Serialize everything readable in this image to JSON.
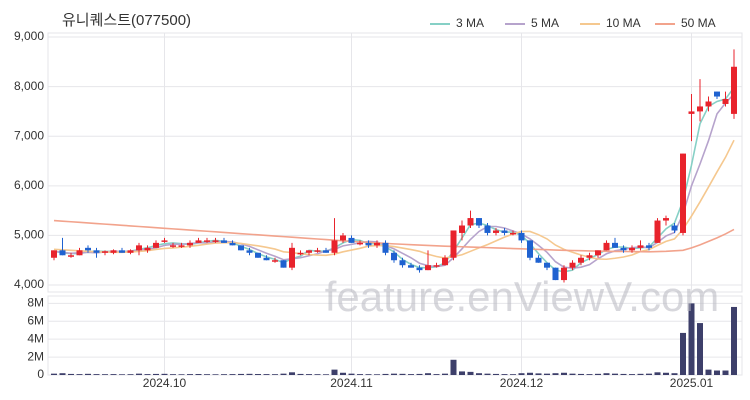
{
  "chart_data": [
    {
      "type": "candlestick",
      "title": "유니퀘스트(077500)",
      "watermark": "feature.enViewV.com",
      "ylim": [
        3900,
        9000
      ],
      "yticks": [
        {
          "value": 4000,
          "label": "4,000"
        },
        {
          "value": 5000,
          "label": "5,000"
        },
        {
          "value": 6000,
          "label": "6,000"
        },
        {
          "value": 7000,
          "label": "7,000"
        },
        {
          "value": 8000,
          "label": "8,000"
        },
        {
          "value": 9000,
          "label": "9,000"
        }
      ],
      "grid": true,
      "up_color": "#e8232c",
      "down_color": "#1f62d0",
      "legend": "top-right",
      "open": [
        4550,
        4700,
        4600,
        4600,
        4750,
        4700,
        4650,
        4650,
        4700,
        4650,
        4700,
        4700,
        4750,
        4900,
        4800,
        4800,
        4800,
        4850,
        4900,
        4900,
        4900,
        4850,
        4800,
        4700,
        4650,
        4550,
        4500,
        4500,
        4350,
        4650,
        4650,
        4700,
        4700,
        4650,
        4900,
        4950,
        4850,
        4850,
        4800,
        4850,
        4650,
        4500,
        4400,
        4350,
        4300,
        4400,
        4400,
        4550,
        5050,
        5200,
        5350,
        5200,
        5050,
        5100,
        5050,
        5050,
        4900,
        4550,
        4450,
        4350,
        4100,
        4350,
        4450,
        4550,
        4600,
        4700,
        4850,
        4750,
        4700,
        4750,
        4800,
        4850,
        5300,
        5200,
        5050,
        7450,
        7500,
        7600,
        7900,
        7650,
        7450
      ],
      "high": [
        4700,
        4950,
        4650,
        4750,
        4800,
        4750,
        4700,
        4720,
        4750,
        4720,
        4850,
        4800,
        4900,
        4950,
        4850,
        4850,
        4900,
        4950,
        4950,
        4950,
        4950,
        4900,
        4800,
        4750,
        4650,
        4600,
        4550,
        4500,
        4850,
        4700,
        4700,
        4750,
        4750,
        5350,
        5050,
        5000,
        4900,
        4900,
        4900,
        4900,
        4700,
        4550,
        4450,
        4400,
        4700,
        4450,
        4600,
        5100,
        5300,
        5500,
        5350,
        5250,
        5150,
        5150,
        5100,
        5100,
        4900,
        4600,
        4450,
        4350,
        4400,
        4500,
        4600,
        4650,
        4700,
        4900,
        4950,
        4800,
        4800,
        4900,
        4850,
        5350,
        5400,
        5250,
        6650,
        7850,
        8150,
        7800,
        7900,
        7900,
        8750
      ],
      "low": [
        4500,
        4600,
        4550,
        4600,
        4650,
        4550,
        4600,
        4620,
        4650,
        4620,
        4600,
        4650,
        4750,
        4850,
        4750,
        4750,
        4750,
        4850,
        4850,
        4850,
        4850,
        4800,
        4700,
        4600,
        4550,
        4500,
        4450,
        4350,
        4300,
        4600,
        4600,
        4650,
        4650,
        4600,
        4850,
        4850,
        4800,
        4750,
        4750,
        4600,
        4450,
        4350,
        4350,
        4250,
        4300,
        4350,
        4400,
        4500,
        4900,
        5150,
        5150,
        5000,
        5000,
        5000,
        5000,
        4850,
        4500,
        4450,
        4300,
        4100,
        4050,
        4300,
        4400,
        4500,
        4550,
        4700,
        4750,
        4650,
        4650,
        4700,
        4700,
        4850,
        5200,
        5050,
        5000,
        6900,
        7300,
        7500,
        7750,
        7600,
        7350
      ],
      "close": [
        4700,
        4600,
        4600,
        4700,
        4700,
        4650,
        4680,
        4700,
        4650,
        4700,
        4800,
        4750,
        4850,
        4900,
        4800,
        4800,
        4850,
        4900,
        4900,
        4900,
        4850,
        4800,
        4700,
        4650,
        4550,
        4500,
        4500,
        4350,
        4750,
        4650,
        4700,
        4700,
        4650,
        4900,
        5000,
        4850,
        4850,
        4800,
        4850,
        4650,
        4500,
        4400,
        4350,
        4300,
        4400,
        4400,
        4550,
        5100,
        5200,
        5350,
        5200,
        5050,
        5100,
        5050,
        5050,
        4900,
        4550,
        4450,
        4350,
        4100,
        4350,
        4450,
        4550,
        4600,
        4700,
        4850,
        4750,
        4700,
        4750,
        4800,
        4750,
        5300,
        5350,
        5100,
        6650,
        7500,
        7600,
        7700,
        7800,
        7750,
        8400
      ],
      "series": [
        {
          "name": "3 MA",
          "color": "#86d0c6",
          "values": [
            4680,
            4650,
            4633,
            4633,
            4667,
            4683,
            4677,
            4677,
            4677,
            4683,
            4717,
            4750,
            4800,
            4833,
            4850,
            4833,
            4817,
            4850,
            4883,
            4900,
            4883,
            4850,
            4783,
            4717,
            4633,
            4567,
            4517,
            4450,
            4533,
            4583,
            4700,
            4683,
            4683,
            4750,
            4850,
            4917,
            4900,
            4833,
            4833,
            4767,
            4667,
            4517,
            4417,
            4350,
            4350,
            4367,
            4450,
            4683,
            4950,
            5217,
            5250,
            5200,
            5117,
            5067,
            5067,
            5000,
            4833,
            4633,
            4450,
            4300,
            4267,
            4300,
            4450,
            4533,
            4617,
            4717,
            4767,
            4767,
            4733,
            4750,
            4767,
            4950,
            5133,
            5250,
            5700,
            6417,
            7250,
            7600,
            7700,
            7750,
            7983
          ]
        },
        {
          "name": "5 MA",
          "color": "#b6a3cc",
          "values": [
            4680,
            4660,
            4640,
            4650,
            4660,
            4650,
            4666,
            4686,
            4676,
            4676,
            4706,
            4720,
            4750,
            4800,
            4820,
            4820,
            4840,
            4850,
            4850,
            4870,
            4880,
            4870,
            4830,
            4780,
            4710,
            4640,
            4580,
            4510,
            4530,
            4550,
            4590,
            4630,
            4690,
            4720,
            4790,
            4820,
            4850,
            4880,
            4870,
            4800,
            4730,
            4640,
            4550,
            4440,
            4390,
            4370,
            4400,
            4550,
            4730,
            4920,
            5080,
            5180,
            5180,
            5150,
            5090,
            5030,
            4930,
            4800,
            4660,
            4470,
            4360,
            4340,
            4360,
            4410,
            4530,
            4630,
            4690,
            4720,
            4750,
            4770,
            4750,
            4860,
            4990,
            5060,
            5430,
            6000,
            6440,
            6910,
            7450,
            7670,
            7850
          ]
        },
        {
          "name": "10 MA",
          "color": "#f5c88f",
          "values": [
            4720,
            4710,
            4700,
            4690,
            4680,
            4670,
            4665,
            4660,
            4660,
            4668,
            4678,
            4693,
            4718,
            4738,
            4748,
            4763,
            4780,
            4800,
            4825,
            4845,
            4850,
            4855,
            4840,
            4815,
            4790,
            4760,
            4725,
            4670,
            4655,
            4630,
            4615,
            4605,
            4600,
            4625,
            4670,
            4705,
            4740,
            4785,
            4795,
            4795,
            4775,
            4745,
            4715,
            4680,
            4620,
            4575,
            4545,
            4575,
            4610,
            4680,
            4750,
            4815,
            4890,
            4965,
            5030,
            5080,
            5080,
            5015,
            4930,
            4805,
            4720,
            4660,
            4605,
            4560,
            4525,
            4520,
            4540,
            4565,
            4605,
            4675,
            4715,
            4800,
            4880,
            4930,
            5125,
            5390,
            5675,
            5975,
            6280,
            6575,
            6920
          ]
        },
        {
          "name": "50 MA",
          "color": "#f2a38c",
          "values": [
            5300,
            5288,
            5276,
            5264,
            5252,
            5240,
            5228,
            5216,
            5204,
            5192,
            5180,
            5168,
            5156,
            5144,
            5132,
            5120,
            5108,
            5096,
            5084,
            5072,
            5060,
            5048,
            5036,
            5024,
            5012,
            5000,
            4988,
            4976,
            4964,
            4952,
            4940,
            4928,
            4916,
            4904,
            4892,
            4880,
            4870,
            4860,
            4850,
            4840,
            4830,
            4822,
            4814,
            4806,
            4798,
            4790,
            4784,
            4778,
            4772,
            4766,
            4760,
            4754,
            4748,
            4742,
            4736,
            4730,
            4724,
            4718,
            4712,
            4706,
            4700,
            4696,
            4692,
            4688,
            4684,
            4680,
            4678,
            4676,
            4674,
            4672,
            4670,
            4675,
            4680,
            4690,
            4700,
            4750,
            4810,
            4880,
            4950,
            5030,
            5120
          ]
        }
      ]
    },
    {
      "type": "bar",
      "color": "#3d3f6a",
      "ylim": [
        0,
        8600000
      ],
      "yticks": [
        0,
        {
          "value": 2000000,
          "label": "2M"
        },
        {
          "value": 4000000,
          "label": "4M"
        },
        {
          "value": 6000000,
          "label": "6M"
        },
        {
          "value": 8000000,
          "label": "8M"
        }
      ],
      "categories": [
        null,
        null,
        null,
        null,
        null,
        null,
        null,
        null,
        null,
        null,
        null,
        null,
        null,
        "2024.10",
        null,
        null,
        null,
        null,
        null,
        null,
        null,
        null,
        null,
        null,
        null,
        null,
        null,
        null,
        null,
        null,
        null,
        null,
        null,
        null,
        null,
        "2024.11",
        null,
        null,
        null,
        null,
        null,
        null,
        null,
        null,
        null,
        null,
        null,
        null,
        null,
        null,
        null,
        null,
        null,
        null,
        null,
        "2024.12",
        null,
        null,
        null,
        null,
        null,
        null,
        null,
        null,
        null,
        null,
        null,
        null,
        null,
        null,
        null,
        null,
        null,
        null,
        null,
        "2025.01",
        null,
        null,
        null,
        null,
        null
      ],
      "values": [
        150000,
        200000,
        120000,
        100000,
        130000,
        100000,
        90000,
        100000,
        80000,
        90000,
        150000,
        100000,
        120000,
        130000,
        90000,
        80000,
        100000,
        110000,
        90000,
        80000,
        90000,
        100000,
        120000,
        130000,
        110000,
        100000,
        90000,
        150000,
        300000,
        120000,
        100000,
        90000,
        80000,
        600000,
        250000,
        150000,
        100000,
        90000,
        80000,
        120000,
        150000,
        130000,
        100000,
        120000,
        200000,
        100000,
        150000,
        1700000,
        400000,
        350000,
        200000,
        150000,
        120000,
        100000,
        90000,
        200000,
        250000,
        180000,
        150000,
        200000,
        250000,
        150000,
        120000,
        100000,
        130000,
        200000,
        150000,
        120000,
        100000,
        130000,
        150000,
        300000,
        250000,
        200000,
        4700000,
        8000000,
        5800000,
        600000,
        500000,
        500000,
        7600000
      ]
    }
  ]
}
